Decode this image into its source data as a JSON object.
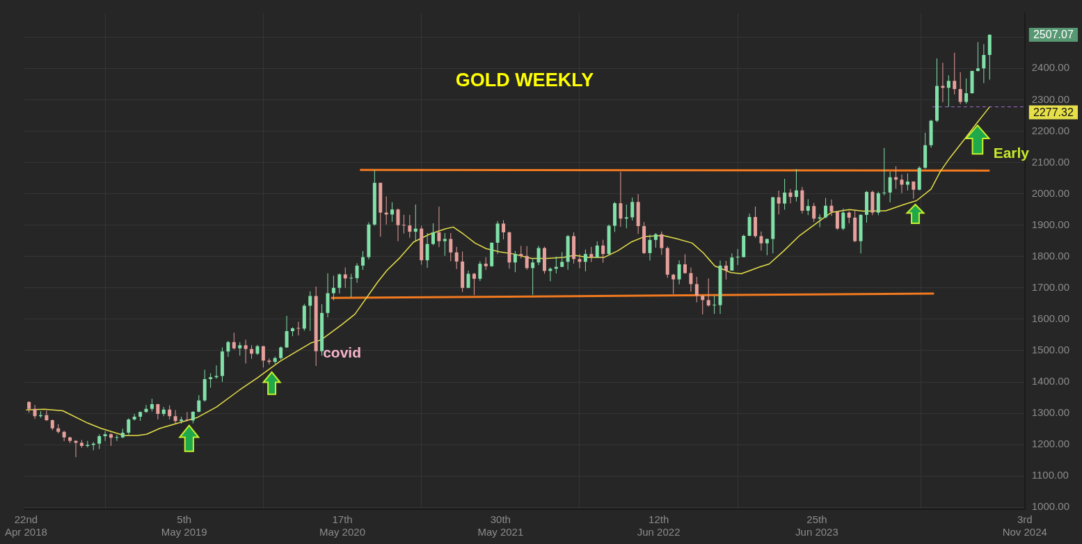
{
  "chart_data": {
    "type": "candlestick",
    "title": "GOLD WEEKLY",
    "x": [
      "2018-04-29",
      "2018-05-13",
      "2018-05-27",
      "2018-06-10",
      "2018-06-24",
      "2018-07-08",
      "2018-07-22",
      "2018-08-05",
      "2018-08-19",
      "2018-09-02",
      "2018-09-16",
      "2018-09-30",
      "2018-10-14",
      "2018-10-28",
      "2018-11-11",
      "2018-11-25",
      "2018-12-09",
      "2018-12-23",
      "2019-01-06",
      "2019-01-20",
      "2019-02-03",
      "2019-02-17",
      "2019-03-03",
      "2019-03-17",
      "2019-03-31",
      "2019-04-14",
      "2019-04-28",
      "2019-05-12",
      "2019-05-26",
      "2019-06-09",
      "2019-06-23",
      "2019-07-07",
      "2019-07-21",
      "2019-08-04",
      "2019-08-18",
      "2019-09-01",
      "2019-09-15",
      "2019-09-29",
      "2019-10-13",
      "2019-10-27",
      "2019-11-10",
      "2019-11-24",
      "2019-12-08",
      "2019-12-22",
      "2020-01-05",
      "2020-01-19",
      "2020-02-02",
      "2020-02-16",
      "2020-03-01",
      "2020-03-15",
      "2020-03-29",
      "2020-04-12",
      "2020-04-26",
      "2020-05-10",
      "2020-05-24",
      "2020-06-07",
      "2020-06-21",
      "2020-07-05",
      "2020-07-19",
      "2020-08-02",
      "2020-08-16",
      "2020-08-30",
      "2020-09-13",
      "2020-09-27",
      "2020-10-11",
      "2020-10-25",
      "2020-11-08",
      "2020-11-22",
      "2020-12-06",
      "2020-12-20",
      "2021-01-03",
      "2021-01-17",
      "2021-01-31",
      "2021-02-14",
      "2021-02-28",
      "2021-03-14",
      "2021-03-28",
      "2021-04-11",
      "2021-04-25",
      "2021-05-09",
      "2021-05-23",
      "2021-06-06",
      "2021-06-20",
      "2021-07-04",
      "2021-07-18",
      "2021-08-01",
      "2021-08-15",
      "2021-08-29",
      "2021-09-12",
      "2021-09-26",
      "2021-10-10",
      "2021-10-24",
      "2021-11-07",
      "2021-11-21",
      "2021-12-05",
      "2021-12-19",
      "2022-01-02",
      "2022-01-16",
      "2022-01-30",
      "2022-02-13",
      "2022-02-27",
      "2022-03-13",
      "2022-03-27",
      "2022-04-10",
      "2022-04-24",
      "2022-05-08",
      "2022-05-22",
      "2022-06-05",
      "2022-06-19",
      "2022-07-03",
      "2022-07-17",
      "2022-07-31",
      "2022-08-14",
      "2022-08-28",
      "2022-09-11",
      "2022-09-25",
      "2022-10-09",
      "2022-10-23",
      "2022-11-06",
      "2022-11-20",
      "2022-12-04",
      "2022-12-18",
      "2023-01-01",
      "2023-01-15",
      "2023-01-29",
      "2023-02-12",
      "2023-02-26",
      "2023-03-12",
      "2023-03-26",
      "2023-04-09",
      "2023-04-23",
      "2023-05-07",
      "2023-05-21",
      "2023-06-04",
      "2023-06-18",
      "2023-07-02",
      "2023-07-16",
      "2023-07-30",
      "2023-08-13",
      "2023-08-27",
      "2023-09-10",
      "2023-09-24",
      "2023-10-08",
      "2023-10-22",
      "2023-11-05",
      "2023-11-19",
      "2023-12-03",
      "2023-12-17",
      "2023-12-31",
      "2024-01-14",
      "2024-01-28",
      "2024-02-11",
      "2024-02-25",
      "2024-03-10",
      "2024-03-24",
      "2024-04-07",
      "2024-04-21",
      "2024-05-05",
      "2024-05-19",
      "2024-06-02",
      "2024-06-16",
      "2024-06-30",
      "2024-07-14",
      "2024-07-28",
      "2024-08-11"
    ],
    "ohlc": [
      [
        1336,
        1338,
        1302,
        1314
      ],
      [
        1314,
        1326,
        1282,
        1291
      ],
      [
        1291,
        1307,
        1286,
        1294
      ],
      [
        1294,
        1309,
        1275,
        1278
      ],
      [
        1278,
        1280,
        1246,
        1252
      ],
      [
        1252,
        1265,
        1236,
        1241
      ],
      [
        1241,
        1244,
        1211,
        1223
      ],
      [
        1223,
        1225,
        1205,
        1212
      ],
      [
        1212,
        1214,
        1160,
        1206
      ],
      [
        1206,
        1215,
        1190,
        1196
      ],
      [
        1196,
        1212,
        1191,
        1199
      ],
      [
        1199,
        1208,
        1182,
        1203
      ],
      [
        1203,
        1233,
        1186,
        1227
      ],
      [
        1227,
        1243,
        1212,
        1233
      ],
      [
        1233,
        1237,
        1196,
        1222
      ],
      [
        1222,
        1231,
        1212,
        1223
      ],
      [
        1223,
        1251,
        1221,
        1238
      ],
      [
        1238,
        1284,
        1232,
        1280
      ],
      [
        1280,
        1298,
        1277,
        1289
      ],
      [
        1289,
        1306,
        1276,
        1304
      ],
      [
        1304,
        1326,
        1302,
        1314
      ],
      [
        1314,
        1346,
        1306,
        1329
      ],
      [
        1329,
        1330,
        1281,
        1298
      ],
      [
        1298,
        1320,
        1291,
        1312
      ],
      [
        1312,
        1325,
        1280,
        1291
      ],
      [
        1291,
        1310,
        1266,
        1275
      ],
      [
        1275,
        1289,
        1267,
        1280
      ],
      [
        1280,
        1304,
        1274,
        1277
      ],
      [
        1277,
        1306,
        1268,
        1305
      ],
      [
        1305,
        1358,
        1303,
        1341
      ],
      [
        1341,
        1439,
        1337,
        1409
      ],
      [
        1409,
        1428,
        1382,
        1415
      ],
      [
        1415,
        1453,
        1410,
        1419
      ],
      [
        1419,
        1510,
        1400,
        1497
      ],
      [
        1497,
        1531,
        1480,
        1527
      ],
      [
        1527,
        1557,
        1503,
        1507
      ],
      [
        1507,
        1527,
        1484,
        1517
      ],
      [
        1517,
        1535,
        1459,
        1505
      ],
      [
        1505,
        1517,
        1474,
        1490
      ],
      [
        1490,
        1518,
        1486,
        1514
      ],
      [
        1514,
        1515,
        1446,
        1468
      ],
      [
        1468,
        1475,
        1456,
        1464
      ],
      [
        1464,
        1481,
        1458,
        1476
      ],
      [
        1476,
        1513,
        1471,
        1510
      ],
      [
        1510,
        1611,
        1508,
        1562
      ],
      [
        1562,
        1574,
        1546,
        1571
      ],
      [
        1571,
        1592,
        1548,
        1570
      ],
      [
        1570,
        1649,
        1563,
        1643
      ],
      [
        1643,
        1689,
        1563,
        1674
      ],
      [
        1674,
        1704,
        1451,
        1498
      ],
      [
        1498,
        1648,
        1484,
        1620
      ],
      [
        1620,
        1747,
        1606,
        1683
      ],
      [
        1683,
        1739,
        1660,
        1700
      ],
      [
        1700,
        1746,
        1682,
        1743
      ],
      [
        1743,
        1765,
        1700,
        1730
      ],
      [
        1730,
        1745,
        1671,
        1731
      ],
      [
        1731,
        1779,
        1716,
        1771
      ],
      [
        1771,
        1818,
        1757,
        1798
      ],
      [
        1798,
        1909,
        1791,
        1902
      ],
      [
        1902,
        2075,
        1898,
        2035
      ],
      [
        2035,
        2036,
        1863,
        1940
      ],
      [
        1940,
        1992,
        1902,
        1934
      ],
      [
        1934,
        1973,
        1911,
        1950
      ],
      [
        1950,
        1953,
        1849,
        1900
      ],
      [
        1900,
        1933,
        1873,
        1899
      ],
      [
        1899,
        1933,
        1860,
        1879
      ],
      [
        1879,
        1966,
        1850,
        1889
      ],
      [
        1889,
        1898,
        1774,
        1788
      ],
      [
        1788,
        1875,
        1764,
        1840
      ],
      [
        1840,
        1906,
        1836,
        1877
      ],
      [
        1877,
        1959,
        1830,
        1849
      ],
      [
        1849,
        1875,
        1802,
        1856
      ],
      [
        1856,
        1875,
        1785,
        1813
      ],
      [
        1813,
        1831,
        1760,
        1784
      ],
      [
        1784,
        1816,
        1687,
        1700
      ],
      [
        1700,
        1755,
        1699,
        1745
      ],
      [
        1745,
        1748,
        1677,
        1729
      ],
      [
        1729,
        1785,
        1722,
        1777
      ],
      [
        1777,
        1798,
        1757,
        1769
      ],
      [
        1769,
        1845,
        1767,
        1844
      ],
      [
        1844,
        1913,
        1808,
        1905
      ],
      [
        1905,
        1916,
        1855,
        1877
      ],
      [
        1877,
        1880,
        1761,
        1781
      ],
      [
        1781,
        1818,
        1750,
        1808
      ],
      [
        1808,
        1834,
        1794,
        1802
      ],
      [
        1802,
        1833,
        1758,
        1763
      ],
      [
        1763,
        1795,
        1678,
        1781
      ],
      [
        1781,
        1834,
        1772,
        1827
      ],
      [
        1827,
        1831,
        1745,
        1754
      ],
      [
        1754,
        1765,
        1721,
        1761
      ],
      [
        1761,
        1800,
        1746,
        1767
      ],
      [
        1767,
        1814,
        1766,
        1783
      ],
      [
        1783,
        1869,
        1758,
        1865
      ],
      [
        1865,
        1877,
        1778,
        1792
      ],
      [
        1792,
        1808,
        1762,
        1783
      ],
      [
        1783,
        1822,
        1753,
        1808
      ],
      [
        1808,
        1831,
        1782,
        1797
      ],
      [
        1797,
        1848,
        1796,
        1835
      ],
      [
        1835,
        1853,
        1780,
        1808
      ],
      [
        1808,
        1902,
        1806,
        1898
      ],
      [
        1898,
        1974,
        1878,
        1970
      ],
      [
        1970,
        2070,
        1895,
        1921
      ],
      [
        1921,
        1966,
        1890,
        1925
      ],
      [
        1925,
        1988,
        1915,
        1974
      ],
      [
        1974,
        1999,
        1872,
        1897
      ],
      [
        1897,
        1910,
        1808,
        1811
      ],
      [
        1811,
        1870,
        1787,
        1853
      ],
      [
        1853,
        1875,
        1828,
        1871
      ],
      [
        1871,
        1880,
        1805,
        1827
      ],
      [
        1827,
        1832,
        1732,
        1742
      ],
      [
        1742,
        1745,
        1680,
        1727
      ],
      [
        1727,
        1788,
        1711,
        1775
      ],
      [
        1775,
        1807,
        1745,
        1747
      ],
      [
        1747,
        1765,
        1688,
        1712
      ],
      [
        1712,
        1735,
        1654,
        1675
      ],
      [
        1675,
        1677,
        1615,
        1661
      ],
      [
        1661,
        1730,
        1640,
        1644
      ],
      [
        1644,
        1675,
        1617,
        1645
      ],
      [
        1645,
        1787,
        1617,
        1771
      ],
      [
        1771,
        1786,
        1727,
        1755
      ],
      [
        1755,
        1810,
        1755,
        1797
      ],
      [
        1797,
        1824,
        1773,
        1798
      ],
      [
        1798,
        1870,
        1797,
        1866
      ],
      [
        1866,
        1937,
        1865,
        1926
      ],
      [
        1926,
        1959,
        1860,
        1865
      ],
      [
        1865,
        1880,
        1819,
        1842
      ],
      [
        1842,
        1857,
        1804,
        1856
      ],
      [
        1856,
        1990,
        1810,
        1989
      ],
      [
        1989,
        2010,
        1934,
        1969
      ],
      [
        1969,
        2048,
        1949,
        2004
      ],
      [
        2004,
        2015,
        1969,
        1990
      ],
      [
        1990,
        2079,
        1976,
        2011
      ],
      [
        2011,
        2022,
        1937,
        1946
      ],
      [
        1946,
        1983,
        1932,
        1961
      ],
      [
        1961,
        1971,
        1910,
        1921
      ],
      [
        1921,
        1935,
        1893,
        1925
      ],
      [
        1925,
        1987,
        1922,
        1962
      ],
      [
        1962,
        1982,
        1930,
        1943
      ],
      [
        1943,
        1946,
        1885,
        1889
      ],
      [
        1889,
        1953,
        1884,
        1940
      ],
      [
        1940,
        1945,
        1906,
        1924
      ],
      [
        1924,
        1947,
        1846,
        1849
      ],
      [
        1849,
        1935,
        1810,
        1933
      ],
      [
        1933,
        2009,
        1908,
        2006
      ],
      [
        2006,
        2010,
        1932,
        1940
      ],
      [
        1940,
        2007,
        1932,
        2002
      ],
      [
        2002,
        2146,
        1995,
        2004
      ],
      [
        2004,
        2070,
        1973,
        2053
      ],
      [
        2053,
        2088,
        2016,
        2045
      ],
      [
        2045,
        2062,
        2002,
        2029
      ],
      [
        2029,
        2065,
        2011,
        2039
      ],
      [
        2039,
        2040,
        1984,
        2013
      ],
      [
        2013,
        2088,
        2011,
        2083
      ],
      [
        2083,
        2195,
        2080,
        2155
      ],
      [
        2155,
        2236,
        2147,
        2233
      ],
      [
        2233,
        2432,
        2229,
        2344
      ],
      [
        2344,
        2418,
        2292,
        2338
      ],
      [
        2338,
        2378,
        2277,
        2360
      ],
      [
        2360,
        2450,
        2317,
        2334
      ],
      [
        2334,
        2388,
        2286,
        2293
      ],
      [
        2293,
        2368,
        2287,
        2321
      ],
      [
        2321,
        2393,
        2319,
        2392
      ],
      [
        2392,
        2484,
        2390,
        2400
      ],
      [
        2400,
        2477,
        2353,
        2443
      ],
      [
        2443,
        2509,
        2364,
        2507.07
      ]
    ],
    "colors": [
      "#e6a09c",
      "#e6a09c",
      "#80e0a8",
      "#e6a09c",
      "#e6a09c",
      "#e6a09c",
      "#e6a09c",
      "#e6a09c",
      "#e6a09c",
      "#e6a09c",
      "#80e0a8",
      "#80e0a8",
      "#80e0a8",
      "#80e0a8",
      "#e6a09c",
      "#80e0a8",
      "#80e0a8",
      "#80e0a8",
      "#80e0a8",
      "#80e0a8",
      "#80e0a8",
      "#80e0a8",
      "#e6a09c",
      "#80e0a8",
      "#e6a09c",
      "#e6a09c",
      "#80e0a8",
      "#e6a09c",
      "#80e0a8",
      "#80e0a8",
      "#80e0a8",
      "#80e0a8",
      "#80e0a8",
      "#80e0a8",
      "#80e0a8",
      "#e6a09c",
      "#80e0a8",
      "#e6a09c",
      "#e6a09c",
      "#80e0a8",
      "#e6a09c",
      "#e6a09c",
      "#80e0a8",
      "#80e0a8",
      "#80e0a8",
      "#80e0a8",
      "#e6a09c",
      "#80e0a8",
      "#80e0a8",
      "#e6a09c",
      "#80e0a8",
      "#80e0a8",
      "#80e0a8",
      "#80e0a8",
      "#e6a09c",
      "#80e0a8",
      "#80e0a8",
      "#80e0a8",
      "#80e0a8",
      "#80e0a8",
      "#e6a09c",
      "#e6a09c",
      "#80e0a8",
      "#e6a09c",
      "#e6a09c",
      "#e6a09c",
      "#80e0a8",
      "#e6a09c",
      "#80e0a8",
      "#80e0a8",
      "#e6a09c",
      "#80e0a8",
      "#e6a09c",
      "#e6a09c",
      "#e6a09c",
      "#80e0a8",
      "#e6a09c",
      "#80e0a8",
      "#e6a09c",
      "#80e0a8",
      "#80e0a8",
      "#e6a09c",
      "#e6a09c",
      "#80e0a8",
      "#e6a09c",
      "#e6a09c",
      "#80e0a8",
      "#80e0a8",
      "#e6a09c",
      "#80e0a8",
      "#80e0a8",
      "#80e0a8",
      "#80e0a8",
      "#e6a09c",
      "#e6a09c",
      "#80e0a8",
      "#e6a09c",
      "#80e0a8",
      "#e6a09c",
      "#80e0a8",
      "#80e0a8",
      "#e6a09c",
      "#80e0a8",
      "#80e0a8",
      "#e6a09c",
      "#e6a09c",
      "#80e0a8",
      "#80e0a8",
      "#e6a09c",
      "#e6a09c",
      "#e6a09c",
      "#80e0a8",
      "#e6a09c",
      "#e6a09c",
      "#e6a09c",
      "#e6a09c",
      "#e6a09c",
      "#80e0a8",
      "#80e0a8",
      "#e6a09c",
      "#80e0a8",
      "#80e0a8",
      "#80e0a8",
      "#80e0a8",
      "#e6a09c",
      "#e6a09c",
      "#80e0a8",
      "#80e0a8",
      "#e6a09c",
      "#80e0a8",
      "#e6a09c",
      "#80e0a8",
      "#e6a09c",
      "#80e0a8",
      "#e6a09c",
      "#80e0a8",
      "#80e0a8",
      "#e6a09c",
      "#e6a09c",
      "#80e0a8",
      "#e6a09c",
      "#e6a09c",
      "#80e0a8",
      "#80e0a8",
      "#e6a09c",
      "#80e0a8",
      "#80e0a8",
      "#80e0a8",
      "#e6a09c",
      "#e6a09c",
      "#80e0a8",
      "#e6a09c",
      "#80e0a8",
      "#80e0a8",
      "#80e0a8",
      "#80e0a8",
      "#e6a09c",
      "#80e0a8",
      "#e6a09c",
      "#e6a09c",
      "#80e0a8",
      "#80e0a8",
      "#80e0a8",
      "#80e0a8",
      "#80e0a8"
    ],
    "series": [
      {
        "type": "line",
        "color": "#e6df4a",
        "x": [
          "2018-04-22",
          "2018-06-05",
          "2018-07-19",
          "2018-09-16",
          "2018-10-18",
          "2018-12-12",
          "2019-01-13",
          "2019-02-04",
          "2019-03-08",
          "2019-05-01",
          "2019-06-06",
          "2019-07-21",
          "2019-09-14",
          "2019-10-27",
          "2019-12-20",
          "2020-03-04",
          "2020-03-27",
          "2020-05-14",
          "2020-06-16",
          "2020-08-09",
          "2020-08-31",
          "2020-10-02",
          "2020-11-03",
          "2020-12-11",
          "2021-01-18",
          "2021-02-06",
          "2021-03-03",
          "2021-03-30",
          "2021-04-26",
          "2021-05-28",
          "2021-06-30",
          "2021-08-12",
          "2021-09-19",
          "2021-10-27",
          "2021-11-23",
          "2021-12-25",
          "2022-02-01",
          "2022-03-06",
          "2022-04-07",
          "2022-05-10",
          "2022-06-22",
          "2022-07-24",
          "2022-08-31",
          "2022-09-27",
          "2022-10-24",
          "2022-12-01",
          "2022-12-26",
          "2023-01-16",
          "2023-02-07",
          "2023-03-03",
          "2023-04-07",
          "2023-05-15",
          "2023-06-28",
          "2023-07-30",
          "2023-09-11",
          "2023-10-14",
          "2023-12-07",
          "2024-01-19",
          "2024-02-18",
          "2024-03-24",
          "2024-04-15",
          "2024-05-07",
          "2024-06-13",
          "2024-07-11",
          "2024-08-11"
        ],
        "values": [
          1311,
          1313,
          1308,
          1269,
          1252,
          1229,
          1229,
          1233,
          1252,
          1273,
          1287,
          1320,
          1374,
          1413,
          1466,
          1525,
          1534,
          1581,
          1616,
          1718,
          1755,
          1797,
          1846,
          1871,
          1888,
          1894,
          1871,
          1843,
          1825,
          1815,
          1808,
          1794,
          1794,
          1797,
          1804,
          1797,
          1797,
          1818,
          1846,
          1864,
          1867,
          1857,
          1843,
          1811,
          1770,
          1749,
          1745,
          1755,
          1766,
          1776,
          1818,
          1867,
          1910,
          1941,
          1950,
          1945,
          1946,
          1966,
          1978,
          2015,
          2071,
          2113,
          2176,
          2225,
          2277.32
        ]
      },
      {
        "type": "line",
        "color": "#f27a20",
        "x": [
          "2020-06-28",
          "2024-08-11"
        ],
        "values": [
          2076,
          2074
        ]
      },
      {
        "type": "line",
        "color": "#f27a20",
        "x": [
          "2020-04-20",
          "2024-03-31"
        ],
        "values": [
          1668,
          1682
        ]
      },
      {
        "type": "line",
        "color": "#9f70d0",
        "line_style": "dashed",
        "x": [
          "2024-03-27",
          "2024-11-03"
        ],
        "values": [
          2277.32,
          2277.32
        ]
      }
    ],
    "xlim": [
      "2018-04-18",
      "2024-11-03"
    ],
    "xticks": [
      {
        "value": "2018-04-22",
        "label": "22nd Apr 2018"
      },
      {
        "value": "2019-05-05",
        "label": "5th May 2019"
      },
      {
        "value": "2020-05-17",
        "label": "17th May 2020"
      },
      {
        "value": "2021-05-30",
        "label": "30th May 2021"
      },
      {
        "value": "2022-06-12",
        "label": "12th Jun 2022"
      },
      {
        "value": "2023-06-25",
        "label": "25th Jun 2023"
      },
      {
        "value": "2024-11-03",
        "label": "3rd Nov 2024"
      }
    ],
    "ylim": [
      994,
      2576
    ],
    "yticks": [
      {
        "value": 1000,
        "label": "1000.00"
      },
      {
        "value": 1100,
        "label": "1100.00"
      },
      {
        "value": 1200,
        "label": "1200.00"
      },
      {
        "value": 1300,
        "label": "1300.00"
      },
      {
        "value": 1400,
        "label": "1400.00"
      },
      {
        "value": 1500,
        "label": "1500.00"
      },
      {
        "value": 1600,
        "label": "1600.00"
      },
      {
        "value": 1700,
        "label": "1700.00"
      },
      {
        "value": 1800,
        "label": "1800.00"
      },
      {
        "value": 1900,
        "label": "1900.00"
      },
      {
        "value": 2000,
        "label": "2000.00"
      },
      {
        "value": 2100,
        "label": "2100.00"
      },
      {
        "value": 2200,
        "label": "2200.00"
      },
      {
        "value": 2300,
        "label": "2300.00"
      },
      {
        "value": 2400,
        "label": "2400.00"
      },
      {
        "value": 2500,
        "label": null
      }
    ],
    "grid": true,
    "annotations": [
      {
        "text": "covid",
        "x": "2020-03-15",
        "y": 1490
      },
      {
        "text": "Early",
        "x": "2024-07-11",
        "y": 2225
      },
      "2507.07",
      "2277.32"
    ]
  }
}
